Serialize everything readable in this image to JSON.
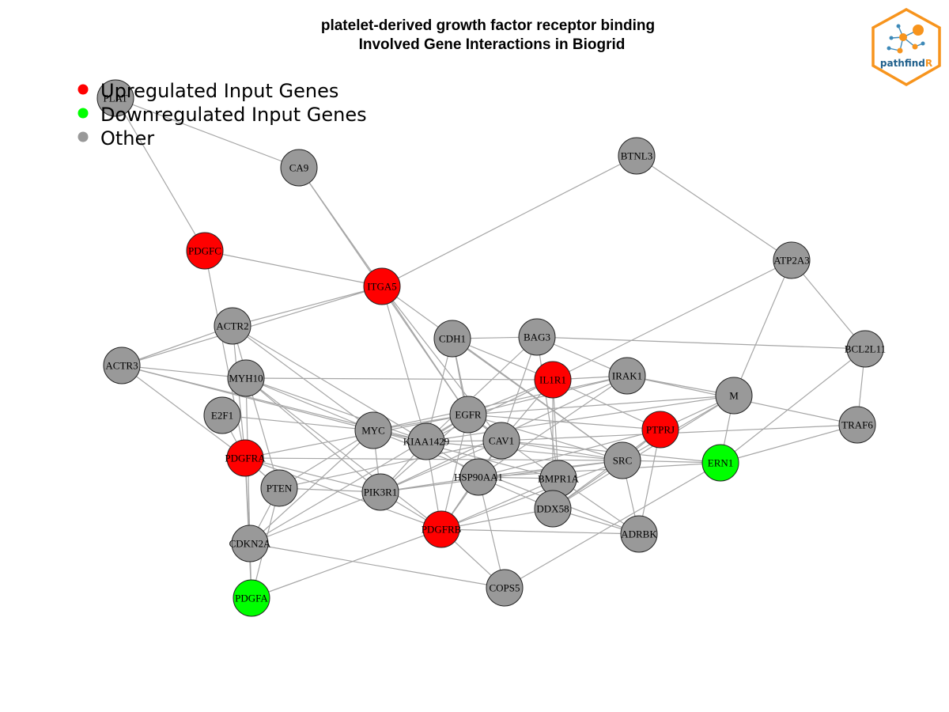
{
  "title": {
    "line1": "platelet-derived growth factor receptor binding",
    "line2": "Involved Gene Interactions in Biogrid"
  },
  "legend": {
    "items": [
      {
        "label": "Upregulated Input Genes",
        "color": "#ff0000"
      },
      {
        "label": "Downregulated Input Genes",
        "color": "#00ff00"
      },
      {
        "label": "Other",
        "color": "#999999"
      }
    ]
  },
  "logo": {
    "text_main": "pathfind",
    "text_accent": "R",
    "accent_color": "#f7941d",
    "main_color": "#1f5f8b"
  },
  "colors": {
    "up": "#ff0000",
    "down": "#00ff00",
    "other": "#999999",
    "edge": "#a6a6a6",
    "node_border": "#222222"
  },
  "nodes": [
    {
      "id": "PLAT",
      "status": "other"
    },
    {
      "id": "CA9",
      "status": "other"
    },
    {
      "id": "BTNL3",
      "status": "other"
    },
    {
      "id": "PDGFC",
      "status": "up"
    },
    {
      "id": "ITGA5",
      "status": "up"
    },
    {
      "id": "ATP2A3",
      "status": "other"
    },
    {
      "id": "ACTR2",
      "status": "other"
    },
    {
      "id": "CDH1",
      "status": "other"
    },
    {
      "id": "BAG3",
      "status": "other"
    },
    {
      "id": "BCL2L11",
      "status": "other"
    },
    {
      "id": "ACTR3",
      "status": "other"
    },
    {
      "id": "MYH10",
      "status": "other"
    },
    {
      "id": "IL1R1",
      "status": "up"
    },
    {
      "id": "IRAK1",
      "status": "other"
    },
    {
      "id": "M",
      "status": "other"
    },
    {
      "id": "E2F1",
      "status": "other"
    },
    {
      "id": "EGFR",
      "status": "other"
    },
    {
      "id": "TRAF6",
      "status": "other"
    },
    {
      "id": "MYC",
      "status": "other"
    },
    {
      "id": "KIAA1429",
      "status": "other"
    },
    {
      "id": "CAV1",
      "status": "other"
    },
    {
      "id": "PTPRJ",
      "status": "up"
    },
    {
      "id": "PDGFRA",
      "status": "up"
    },
    {
      "id": "SRC",
      "status": "other"
    },
    {
      "id": "ERN1",
      "status": "down"
    },
    {
      "id": "HSP90AA1",
      "status": "other"
    },
    {
      "id": "BMPR1A",
      "status": "other"
    },
    {
      "id": "PTEN",
      "status": "other"
    },
    {
      "id": "PIK3R1",
      "status": "other"
    },
    {
      "id": "DDX58",
      "status": "other"
    },
    {
      "id": "PDGFRB",
      "status": "up"
    },
    {
      "id": "ADRBK",
      "status": "other"
    },
    {
      "id": "CDKN2A",
      "status": "other"
    },
    {
      "id": "COPS5",
      "status": "other"
    },
    {
      "id": "PDGFA",
      "status": "down"
    }
  ],
  "edges": [
    [
      "PLAT",
      "CA9"
    ],
    [
      "PLAT",
      "PDGFC"
    ],
    [
      "CA9",
      "ITGA5"
    ],
    [
      "CA9",
      "EGFR"
    ],
    [
      "BTNL3",
      "ITGA5"
    ],
    [
      "BTNL3",
      "ATP2A3"
    ],
    [
      "PDGFC",
      "ITGA5"
    ],
    [
      "PDGFC",
      "PDGFRA"
    ],
    [
      "ITGA5",
      "ACTR2"
    ],
    [
      "ITGA5",
      "ACTR3"
    ],
    [
      "ITGA5",
      "EGFR"
    ],
    [
      "ITGA5",
      "KIAA1429"
    ],
    [
      "ITGA5",
      "SRC"
    ],
    [
      "ITGA5",
      "CAV1"
    ],
    [
      "ATP2A3",
      "IL1R1"
    ],
    [
      "ATP2A3",
      "BCL2L11"
    ],
    [
      "ATP2A3",
      "M"
    ],
    [
      "ACTR2",
      "ACTR3"
    ],
    [
      "ACTR2",
      "MYC"
    ],
    [
      "ACTR2",
      "PDGFRA"
    ],
    [
      "ACTR2",
      "PTEN"
    ],
    [
      "ACTR2",
      "KIAA1429"
    ],
    [
      "CDH1",
      "BAG3"
    ],
    [
      "CDH1",
      "EGFR"
    ],
    [
      "CDH1",
      "SRC"
    ],
    [
      "CDH1",
      "IL1R1"
    ],
    [
      "CDH1",
      "KIAA1429"
    ],
    [
      "CDH1",
      "HSP90AA1"
    ],
    [
      "BAG3",
      "BCL2L11"
    ],
    [
      "BAG3",
      "IRAK1"
    ],
    [
      "BAG3",
      "KIAA1429"
    ],
    [
      "BAG3",
      "CAV1"
    ],
    [
      "BAG3",
      "BMPR1A"
    ],
    [
      "ACTR3",
      "MYH10"
    ],
    [
      "ACTR3",
      "MYC"
    ],
    [
      "ACTR3",
      "PDGFRA"
    ],
    [
      "ACTR3",
      "KIAA1429"
    ],
    [
      "MYH10",
      "IL1R1"
    ],
    [
      "MYH10",
      "MYC"
    ],
    [
      "MYH10",
      "KIAA1429"
    ],
    [
      "MYH10",
      "PDGFRB"
    ],
    [
      "MYH10",
      "PIK3R1"
    ],
    [
      "MYH10",
      "CDKN2A"
    ],
    [
      "IL1R1",
      "IRAK1"
    ],
    [
      "IL1R1",
      "EGFR"
    ],
    [
      "IL1R1",
      "KIAA1429"
    ],
    [
      "IL1R1",
      "PTPRJ"
    ],
    [
      "IL1R1",
      "CAV1"
    ],
    [
      "IL1R1",
      "DDX58"
    ],
    [
      "IL1R1",
      "BMPR1A"
    ],
    [
      "IRAK1",
      "M"
    ],
    [
      "IRAK1",
      "EGFR"
    ],
    [
      "IRAK1",
      "TRAF6"
    ],
    [
      "IRAK1",
      "MYC"
    ],
    [
      "IRAK1",
      "HSP90AA1"
    ],
    [
      "IRAK1",
      "PIK3R1"
    ],
    [
      "M",
      "PTPRJ"
    ],
    [
      "M",
      "EGFR"
    ],
    [
      "M",
      "SRC"
    ],
    [
      "M",
      "ERN1"
    ],
    [
      "M",
      "DDX58"
    ],
    [
      "M",
      "KIAA1429"
    ],
    [
      "E2F1",
      "PDGFRA"
    ],
    [
      "E2F1",
      "MYC"
    ],
    [
      "EGFR",
      "MYC"
    ],
    [
      "EGFR",
      "KIAA1429"
    ],
    [
      "EGFR",
      "CAV1"
    ],
    [
      "EGFR",
      "PTPRJ"
    ],
    [
      "EGFR",
      "PDGFRA"
    ],
    [
      "EGFR",
      "PDGFRB"
    ],
    [
      "EGFR",
      "PIK3R1"
    ],
    [
      "EGFR",
      "BMPR1A"
    ],
    [
      "EGFR",
      "SRC"
    ],
    [
      "EGFR",
      "CDKN2A"
    ],
    [
      "TRAF6",
      "BCL2L11"
    ],
    [
      "TRAF6",
      "CAV1"
    ],
    [
      "TRAF6",
      "ERN1"
    ],
    [
      "MYC",
      "KIAA1429"
    ],
    [
      "MYC",
      "PTEN"
    ],
    [
      "MYC",
      "CDKN2A"
    ],
    [
      "MYC",
      "PIK3R1"
    ],
    [
      "MYC",
      "BMPR1A"
    ],
    [
      "MYC",
      "ADRBK"
    ],
    [
      "KIAA1429",
      "CAV1"
    ],
    [
      "KIAA1429",
      "PDGFRB"
    ],
    [
      "KIAA1429",
      "HSP90AA1"
    ],
    [
      "KIAA1429",
      "PIK3R1"
    ],
    [
      "KIAA1429",
      "SRC"
    ],
    [
      "CAV1",
      "SRC"
    ],
    [
      "CAV1",
      "ERN1"
    ],
    [
      "CAV1",
      "PDGFRB"
    ],
    [
      "CAV1",
      "PTEN"
    ],
    [
      "CAV1",
      "PIK3R1"
    ],
    [
      "CAV1",
      "HSP90AA1"
    ],
    [
      "PTPRJ",
      "SRC"
    ],
    [
      "PTPRJ",
      "ADRBK"
    ],
    [
      "PTPRJ",
      "DDX58"
    ],
    [
      "PTPRJ",
      "HSP90AA1"
    ],
    [
      "PDGFRA",
      "PTEN"
    ],
    [
      "PDGFRA",
      "PIK3R1"
    ],
    [
      "PDGFRA",
      "PDGFRB"
    ],
    [
      "PDGFRA",
      "CDKN2A"
    ],
    [
      "PDGFRA",
      "PDGFA"
    ],
    [
      "PDGFRA",
      "SRC"
    ],
    [
      "SRC",
      "ERN1"
    ],
    [
      "SRC",
      "PDGFRB"
    ],
    [
      "SRC",
      "ADRBK"
    ],
    [
      "SRC",
      "DDX58"
    ],
    [
      "SRC",
      "PIK3R1"
    ],
    [
      "SRC",
      "HSP90AA1"
    ],
    [
      "ERN1",
      "BCL2L11"
    ],
    [
      "ERN1",
      "COPS5"
    ],
    [
      "ERN1",
      "HSP90AA1"
    ],
    [
      "HSP90AA1",
      "PDGFRB"
    ],
    [
      "HSP90AA1",
      "COPS5"
    ],
    [
      "HSP90AA1",
      "BMPR1A"
    ],
    [
      "HSP90AA1",
      "PIK3R1"
    ],
    [
      "HSP90AA1",
      "DDX58"
    ],
    [
      "BMPR1A",
      "DDX58"
    ],
    [
      "BMPR1A",
      "ADRBK"
    ],
    [
      "BMPR1A",
      "PDGFRB"
    ],
    [
      "PTEN",
      "PIK3R1"
    ],
    [
      "PTEN",
      "CDKN2A"
    ],
    [
      "PTEN",
      "PDGFA"
    ],
    [
      "PIK3R1",
      "PDGFRB"
    ],
    [
      "PIK3R1",
      "CDKN2A"
    ],
    [
      "DDX58",
      "ADRBK"
    ],
    [
      "DDX58",
      "PDGFRB"
    ],
    [
      "PDGFRB",
      "PDGFA"
    ],
    [
      "PDGFRB",
      "ADRBK"
    ],
    [
      "PDGFRB",
      "COPS5"
    ],
    [
      "CDKN2A",
      "COPS5"
    ],
    [
      "CDKN2A",
      "PDGFA"
    ]
  ]
}
